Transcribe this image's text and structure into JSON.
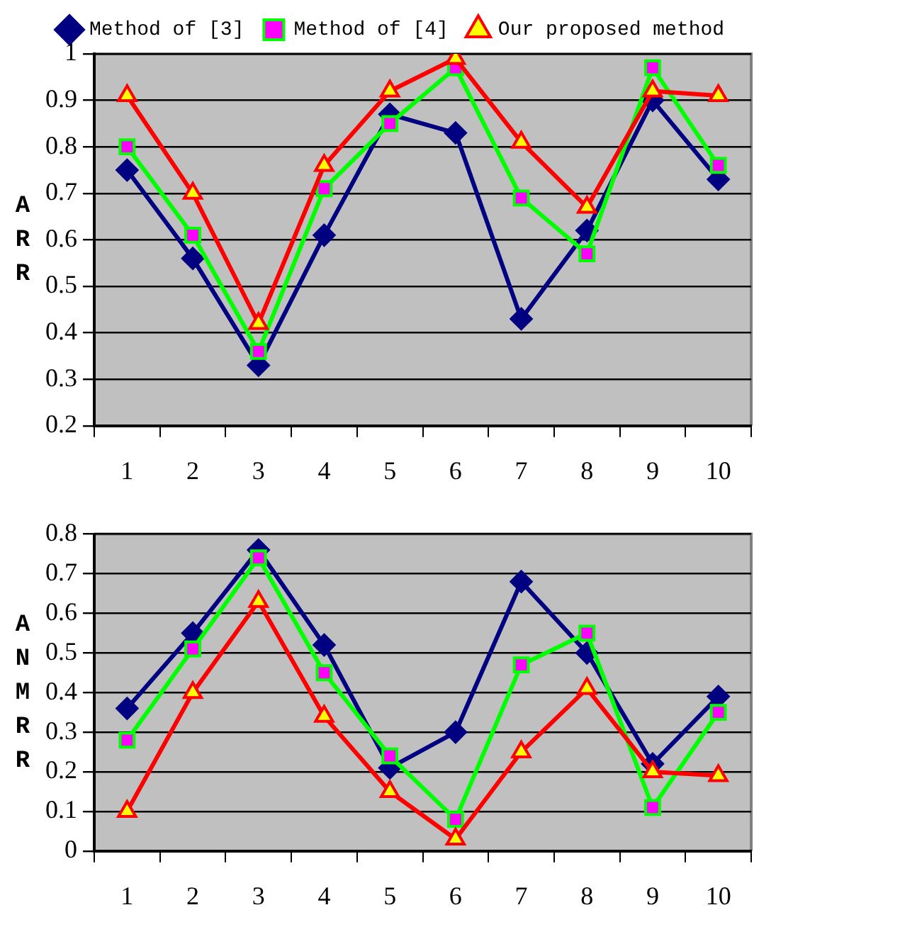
{
  "chart_data": [
    {
      "type": "line",
      "ylabel": "ARR",
      "categories": [
        "1",
        "2",
        "3",
        "4",
        "5",
        "6",
        "7",
        "8",
        "9",
        "10"
      ],
      "ylim": [
        0.2,
        1
      ],
      "yticks": [
        0.2,
        0.3,
        0.4,
        0.5,
        0.6,
        0.7,
        0.8,
        0.9,
        1
      ],
      "grid": "y",
      "legend": "top",
      "series": [
        {
          "name": "Method of [3]",
          "color": "#000080",
          "marker": "diamond",
          "values": [
            0.75,
            0.56,
            0.33,
            0.61,
            0.87,
            0.83,
            0.43,
            0.62,
            0.9,
            0.73
          ]
        },
        {
          "name": "Method of [4]",
          "color": "#00ff00",
          "marker": "square",
          "values": [
            0.8,
            0.61,
            0.36,
            0.71,
            0.85,
            0.97,
            0.69,
            0.57,
            0.97,
            0.76
          ]
        },
        {
          "name": "Our proposed method",
          "color": "#ff0000",
          "marker": "triangle",
          "values": [
            0.91,
            0.7,
            0.42,
            0.76,
            0.92,
            0.99,
            0.81,
            0.67,
            0.92,
            0.91
          ]
        }
      ]
    },
    {
      "type": "line",
      "ylabel": "ANMRR",
      "categories": [
        "1",
        "2",
        "3",
        "4",
        "5",
        "6",
        "7",
        "8",
        "9",
        "10"
      ],
      "ylim": [
        0,
        0.8
      ],
      "yticks": [
        0,
        0.1,
        0.2,
        0.3,
        0.4,
        0.5,
        0.6,
        0.7,
        0.8
      ],
      "grid": "y",
      "series": [
        {
          "color": "#000080",
          "marker": "diamond",
          "values": [
            0.36,
            0.55,
            0.76,
            0.52,
            0.21,
            0.3,
            0.68,
            0.5,
            0.22,
            0.39
          ]
        },
        {
          "color": "#00ff00",
          "marker": "square",
          "values": [
            0.28,
            0.51,
            0.74,
            0.45,
            0.24,
            0.08,
            0.47,
            0.55,
            0.11,
            0.35
          ]
        },
        {
          "color": "#ff0000",
          "marker": "triangle",
          "values": [
            0.1,
            0.4,
            0.63,
            0.34,
            0.15,
            0.03,
            0.25,
            0.41,
            0.2,
            0.19
          ]
        }
      ]
    }
  ]
}
